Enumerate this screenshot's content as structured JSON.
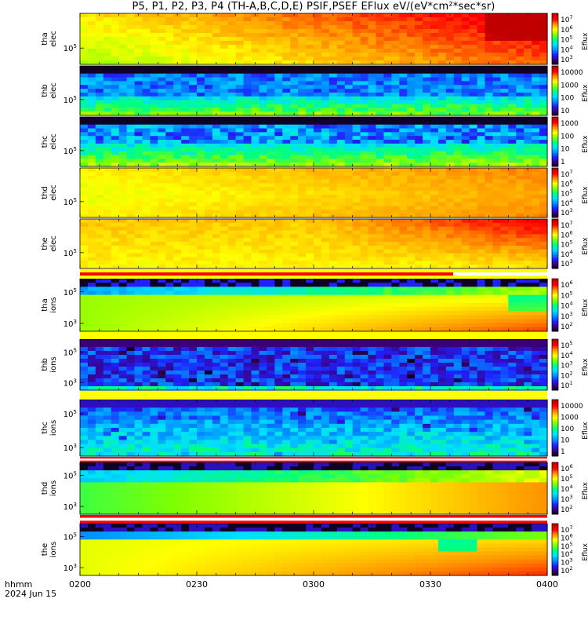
{
  "title": "P5, P1, P2, P3, P4 (TH-A,B,C,D,E) PSIF,PSEF EFlux eV/(eV*cm²*sec*sr)",
  "time_axis": {
    "label_line1": "hhmm",
    "label_line2": "2024 Jun 15",
    "ticks": [
      "0200",
      "0230",
      "0300",
      "0330",
      "0400"
    ],
    "range": [
      "0200",
      "0400"
    ]
  },
  "colorbar_unit": "Eflux",
  "chart_data": [
    {
      "type": "heatmap",
      "panel": "tha-elec",
      "ylabel": [
        "tha",
        "elec"
      ],
      "ytick": "10^5",
      "colorbar_ticks": [
        "10^7",
        "10^6",
        "10^5",
        "10^4",
        "10^3"
      ],
      "zlog": [
        2.6,
        7.1
      ],
      "dominant_zlog": "5.0-6.5",
      "trend": "increasing toward 0400"
    },
    {
      "type": "heatmap",
      "panel": "thb-elec",
      "ylabel": [
        "thb",
        "elec"
      ],
      "ytick": "10^5",
      "colorbar_ticks": [
        "10000",
        "1000",
        "100",
        "10"
      ],
      "zlog": [
        0.5,
        4.2
      ],
      "dominant_zlog": "1.0-2.5",
      "trend": "patchy, noisy"
    },
    {
      "type": "heatmap",
      "panel": "thc-elec",
      "ylabel": [
        "thc",
        "elec"
      ],
      "ytick": "10^5",
      "colorbar_ticks": [
        "1000",
        "100",
        "10",
        "1"
      ],
      "zlog": [
        -0.3,
        3.4
      ],
      "dominant_zlog": "0.5-2.0",
      "trend": "patchy, noisy"
    },
    {
      "type": "heatmap",
      "panel": "thd-elec",
      "ylabel": [
        "thd",
        "elec"
      ],
      "ytick": "10^5",
      "colorbar_ticks": [
        "10^7",
        "10^6",
        "10^5",
        "10^4",
        "10^3"
      ],
      "zlog": [
        2.6,
        7.1
      ],
      "dominant_zlog": "5.5-6.5",
      "trend": "slowly increasing"
    },
    {
      "type": "heatmap",
      "panel": "the-elec",
      "ylabel": [
        "the",
        "elec"
      ],
      "ytick": "10^5",
      "colorbar_ticks": [
        "10^7",
        "10^6",
        "10^5",
        "10^4",
        "10^3"
      ],
      "zlog": [
        2.6,
        7.1
      ],
      "dominant_zlog": "5.5-6.8",
      "trend": "increasing after 0300"
    },
    {
      "type": "heatmap",
      "panel": "tha-ions",
      "ylabel": [
        "tha",
        "ions"
      ],
      "yticks": [
        "10^5",
        "10^3"
      ],
      "colorbar_ticks": [
        "10^6",
        "10^5",
        "10^4",
        "10^3",
        "10^2"
      ],
      "zlog": [
        1.6,
        6.6
      ],
      "dominant_zlog": "4.5-6.0",
      "trend": "disturbance near 0350"
    },
    {
      "type": "heatmap",
      "panel": "thb-ions",
      "ylabel": [
        "thb",
        "ions"
      ],
      "yticks": [
        "10^5",
        "10^3"
      ],
      "colorbar_ticks": [
        "10^5",
        "10^4",
        "10^3",
        "10^2",
        "10^1"
      ],
      "zlog": [
        0.6,
        5.6
      ],
      "dominant_zlog": "1.0-2.5",
      "trend": "patchy, noisy"
    },
    {
      "type": "heatmap",
      "panel": "thc-ions",
      "ylabel": [
        "thc",
        "ions"
      ],
      "yticks": [
        "10^5",
        "10^3"
      ],
      "colorbar_ticks": [
        "10000",
        "1000",
        "100",
        "10",
        "1"
      ],
      "zlog": [
        -0.2,
        4.6
      ],
      "dominant_zlog": "0.8-2.5",
      "trend": "patchy, noisy"
    },
    {
      "type": "heatmap",
      "panel": "thd-ions",
      "ylabel": [
        "thd",
        "ions"
      ],
      "yticks": [
        "10^5",
        "10^3"
      ],
      "colorbar_ticks": [
        "10^6",
        "10^5",
        "10^4",
        "10^3",
        "10^2"
      ],
      "zlog": [
        1.6,
        6.6
      ],
      "dominant_zlog": "4.0-5.5",
      "trend": "increasing toward 0400"
    },
    {
      "type": "heatmap",
      "panel": "the-ions",
      "ylabel": [
        "the",
        "ions"
      ],
      "yticks": [
        "10^5",
        "10^3"
      ],
      "colorbar_ticks": [
        "10^7",
        "10^6",
        "10^5",
        "10^4",
        "10^3",
        "10^2"
      ],
      "zlog": [
        1.6,
        7.2
      ],
      "dominant_zlog": "5.0-6.5",
      "trend": "boundary crossing near 0335"
    }
  ],
  "colors": {
    "colormap": [
      "#000000",
      "#3a007a",
      "#2020ff",
      "#0090ff",
      "#00e0ff",
      "#00ff80",
      "#80ff00",
      "#ffff00",
      "#ff9000",
      "#ff0000",
      "#c00000"
    ],
    "separator_red": "#ff0000",
    "separator_yellow": "#ffff00"
  }
}
